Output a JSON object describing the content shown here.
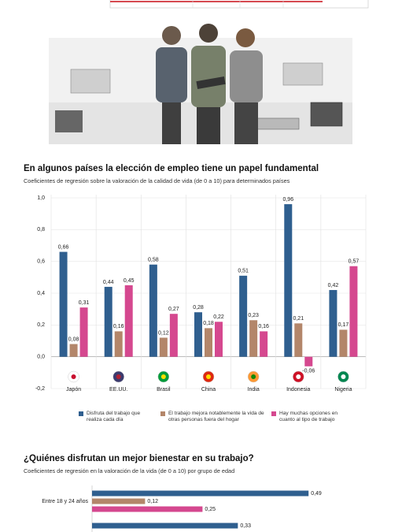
{
  "chart_data": [
    {
      "type": "bar",
      "title": "En algunos países la elección de empleo tiene un papel fundamental",
      "subtitle": "Coeficientes de regresión sobre la valoración de la calidad de vida (de 0 a 10) para determinados países",
      "categories": [
        "Japón",
        "EE.UU.",
        "Brasil",
        "China",
        "India",
        "Indonesia",
        "Nigeria"
      ],
      "series": [
        {
          "name": "Disfruta del trabajo que realiza cada día",
          "color": "#2f5f8f",
          "values": [
            0.66,
            0.44,
            0.58,
            0.28,
            0.51,
            0.96,
            0.42
          ],
          "value_labels": [
            "0,66",
            "0,44",
            "0,58",
            "0,28",
            "0,51",
            "0,96",
            "0,42"
          ]
        },
        {
          "name": "El trabajo mejora notablemente la vida de otras personas fuera del hogar",
          "color": "#b3866a",
          "values": [
            0.08,
            0.16,
            0.12,
            0.18,
            0.23,
            0.21,
            0.17
          ],
          "value_labels": [
            "0,08",
            "0,16",
            "0,12",
            "0,18",
            "0,23",
            "0,21",
            "0,17"
          ]
        },
        {
          "name": "Hay muchas opciones en cuanto al tipo de trabajo",
          "color": "#d5488f",
          "values": [
            0.31,
            0.45,
            0.27,
            0.22,
            0.16,
            -0.06,
            0.57
          ],
          "value_labels": [
            "0,31",
            "0,45",
            "0,27",
            "0,22",
            "0,16",
            "-0,06",
            "0,57"
          ]
        }
      ],
      "ylim": [
        -0.2,
        1.0
      ],
      "yticks": [
        {
          "value": 1.0,
          "label": "1,0"
        },
        {
          "value": 0.8,
          "label": "0,8"
        },
        {
          "value": 0.6,
          "label": "0,6"
        },
        {
          "value": 0.4,
          "label": "0,4"
        },
        {
          "value": 0.2,
          "label": "0,2"
        },
        {
          "value": 0.0,
          "label": "0,0"
        },
        {
          "value": -0.2,
          "label": "-0,2"
        }
      ],
      "grid": true
    },
    {
      "type": "barh",
      "title": "¿Quiénes disfrutan un mejor bienestar en su trabajo?",
      "subtitle": "Coeficientes de regresión en la valoración de la vida (de 0 a 10) por grupo de edad",
      "categories": [
        "Entre 18 y 24 años",
        null
      ],
      "series": [
        {
          "color": "#2f5f8f",
          "values": [
            0.49,
            0.33
          ],
          "value_labels": [
            "0,49",
            "0,33"
          ]
        },
        {
          "color": "#b3866a",
          "values": [
            0.12,
            null
          ],
          "value_labels": [
            "0,12",
            null
          ]
        },
        {
          "color": "#d5488f",
          "values": [
            0.25,
            null
          ],
          "value_labels": [
            "0,25",
            null
          ]
        }
      ],
      "xlim": [
        0,
        0.6
      ]
    }
  ]
}
